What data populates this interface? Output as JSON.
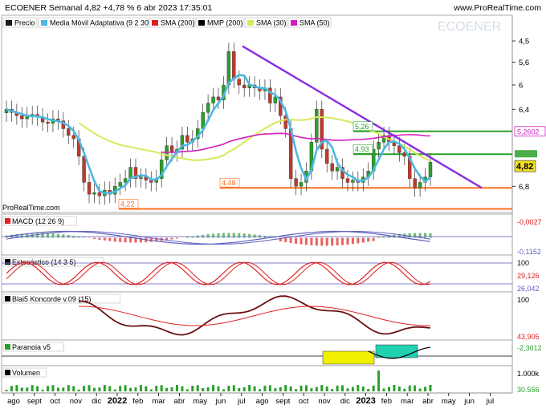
{
  "header": {
    "title": "ECOENER Semanal 4,82 +4,78 % 6 abr 2023 17:35:01",
    "site": "www.ProRealTime.com",
    "watermark": "ECOENER"
  },
  "legend": [
    {
      "label": "Precio",
      "color": "#1a1a1a"
    },
    {
      "label": "Media Móvil Adaptativa (9 2 30)",
      "color": "#4cb8e4"
    },
    {
      "label": "SMA (200)",
      "color": "#e02020"
    },
    {
      "label": "MMP (200)",
      "color": "#000000"
    },
    {
      "label": "SMA (30)",
      "color": "#d8e85a"
    },
    {
      "label": "SMA (50)",
      "color": "#d020c0"
    }
  ],
  "source_note": "ProRealTime.com",
  "price_axis": {
    "ticks": [
      "6,8",
      "6,4",
      "6",
      "5,6",
      "4,5"
    ],
    "badges": [
      {
        "text": "5,2602",
        "color": "#d020c0"
      },
      {
        "text": "4,82",
        "color": "#f0e020",
        "bold": true
      }
    ]
  },
  "level_labels": [
    {
      "text": "5,26",
      "color": "#2aa02a"
    },
    {
      "text": "4,93",
      "color": "#2aa02a"
    },
    {
      "text": "4,48",
      "color": "#ff7020"
    },
    {
      "text": "4,22",
      "color": "#ff7020"
    }
  ],
  "panels": [
    {
      "title": "MACD (12 26 9)",
      "values": [
        "-0,0027",
        "-0,1152"
      ],
      "colors": [
        "#e02020",
        "#6060c0"
      ]
    },
    {
      "title": "Estocástico (14 3 5)",
      "values": [
        "100",
        "29,126",
        "26,042"
      ],
      "colors": [
        "#000000",
        "#e02020",
        "#6060c0"
      ]
    },
    {
      "title": "Blai5 Koncorde v.09 (15)",
      "values": [
        "100",
        "43,905"
      ],
      "colors": [
        "#000000",
        "#e02020"
      ]
    },
    {
      "title": "Paranoia v5",
      "values": [
        "-2,3012"
      ],
      "colors": [
        "#2aa02a"
      ]
    },
    {
      "title": "Volumen",
      "values": [
        "1.000k",
        "30.556"
      ],
      "colors": [
        "#000000",
        "#2aa02a"
      ]
    }
  ],
  "x_axis": [
    "ago",
    "sept",
    "oct",
    "nov",
    "dic",
    "2022",
    "feb",
    "mar",
    "abr",
    "may",
    "jun",
    "jul",
    "ago",
    "sept",
    "oct",
    "nov",
    "dic",
    "2023",
    "feb",
    "mar",
    "abr",
    "may",
    "jun",
    "jul"
  ],
  "chart_data": {
    "type": "candlestick",
    "title": "ECOENER Semanal 4,82 +4,78 % 6 abr 2023 17:35:01",
    "y_scale": "log",
    "y_ticks": [
      4.5,
      5.6,
      6,
      6.4,
      6.8
    ],
    "ylim": [
      4.1,
      7.0
    ],
    "last_price": 4.82,
    "horizontal_levels": [
      {
        "value": 5.26,
        "color": "#2aa02a"
      },
      {
        "value": 4.93,
        "color": "#2aa02a"
      },
      {
        "value": 4.48,
        "color": "#ff7020"
      },
      {
        "value": 4.22,
        "color": "#ff7020"
      }
    ],
    "trendline": {
      "color": "#8a2be2",
      "from": {
        "date": "jul 2022",
        "value": 6.7
      },
      "to": {
        "date": "abr 2023",
        "value": 4.48
      }
    },
    "sma50_last": 5.2602
  }
}
